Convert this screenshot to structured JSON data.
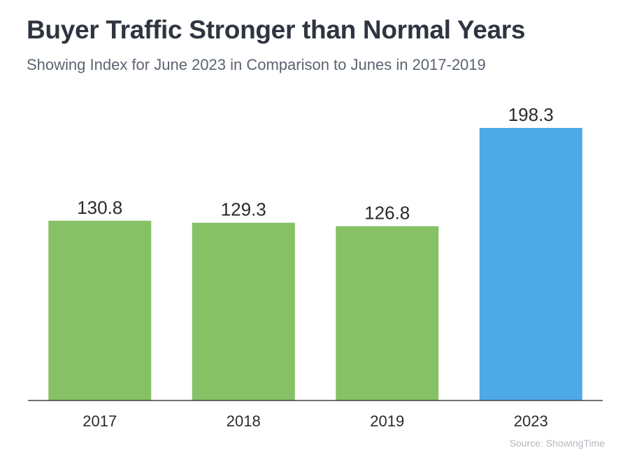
{
  "header": {
    "title": "Buyer Traffic Stronger than Normal Years",
    "subtitle": "Showing Index for June 2023 in Comparison to Junes in 2017-2019"
  },
  "footer": {
    "source": "Source: ShowingTime"
  },
  "colors": {
    "historic_bar": "#86c166",
    "highlight_bar": "#4ea9e7",
    "axis": "#444444"
  },
  "chart_data": {
    "type": "bar",
    "title": "Buyer Traffic Stronger than Normal Years",
    "subtitle": "Showing Index for June 2023 in Comparison to Junes in 2017-2019",
    "xlabel": "",
    "ylabel": "",
    "categories": [
      "2017",
      "2018",
      "2019",
      "2023"
    ],
    "values": [
      130.8,
      129.3,
      126.8,
      198.3
    ],
    "data_labels": [
      "130.8",
      "129.3",
      "126.8",
      "198.3"
    ],
    "highlight_category": "2023",
    "ylim": [
      0,
      198.3
    ],
    "grid": false,
    "legend": "none"
  }
}
